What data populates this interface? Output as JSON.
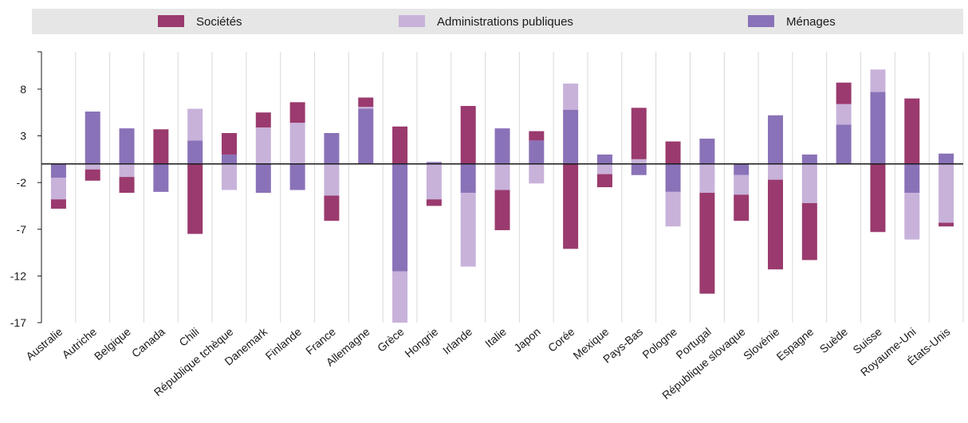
{
  "chart_data": {
    "type": "bar",
    "stacked": true,
    "ylim": [
      -17,
      12
    ],
    "yticks": [
      8,
      3,
      -2,
      -7,
      -12,
      -17
    ],
    "grid": "vertical category separators",
    "legend_position": "top",
    "categories": [
      "Australie",
      "Autriche",
      "Belgique",
      "Canada",
      "Chili",
      "République tchèque",
      "Danemark",
      "Finlande",
      "France",
      "Allemagne",
      "Grèce",
      "Hongrie",
      "Irlande",
      "Italie",
      "Japon",
      "Corée",
      "Mexique",
      "Pays-Bas",
      "Pologne",
      "Portugal",
      "République slovaque",
      "Slovénie",
      "Espagne",
      "Suède",
      "Suisse",
      "Royaume-Uni",
      "États-Unis"
    ],
    "series": [
      {
        "name": "Ménages",
        "color": "#8a72b8",
        "values": [
          -1.5,
          5.6,
          3.8,
          -3.0,
          2.5,
          1.0,
          -3.1,
          -2.8,
          3.3,
          5.9,
          -11.5,
          0.2,
          -3.1,
          3.8,
          2.5,
          5.8,
          1.0,
          -1.2,
          -3.0,
          2.7,
          -1.2,
          5.2,
          1.0,
          4.2,
          7.7,
          -3.1,
          1.1
        ]
      },
      {
        "name": "Administrations publiques",
        "color": "#c8b2da",
        "values": [
          -2.3,
          -0.6,
          -1.4,
          0.0,
          3.4,
          -2.8,
          3.9,
          4.4,
          -3.4,
          0.2,
          -5.5,
          -3.8,
          -7.9,
          -2.8,
          -2.1,
          2.8,
          -1.1,
          0.5,
          -3.7,
          -3.1,
          -2.1,
          -1.7,
          -4.2,
          2.2,
          2.4,
          -5.0,
          -6.3
        ]
      },
      {
        "name": "Sociétés",
        "color": "#9a3a6e",
        "values": [
          -1.0,
          -1.2,
          -1.7,
          3.7,
          -7.5,
          2.3,
          1.6,
          2.2,
          -2.7,
          1.0,
          4.0,
          -0.7,
          6.2,
          -4.3,
          1.0,
          -9.1,
          -1.4,
          5.5,
          2.4,
          -10.8,
          -2.8,
          -9.6,
          -6.1,
          2.3,
          -7.3,
          7.0,
          -0.4
        ]
      }
    ]
  }
}
